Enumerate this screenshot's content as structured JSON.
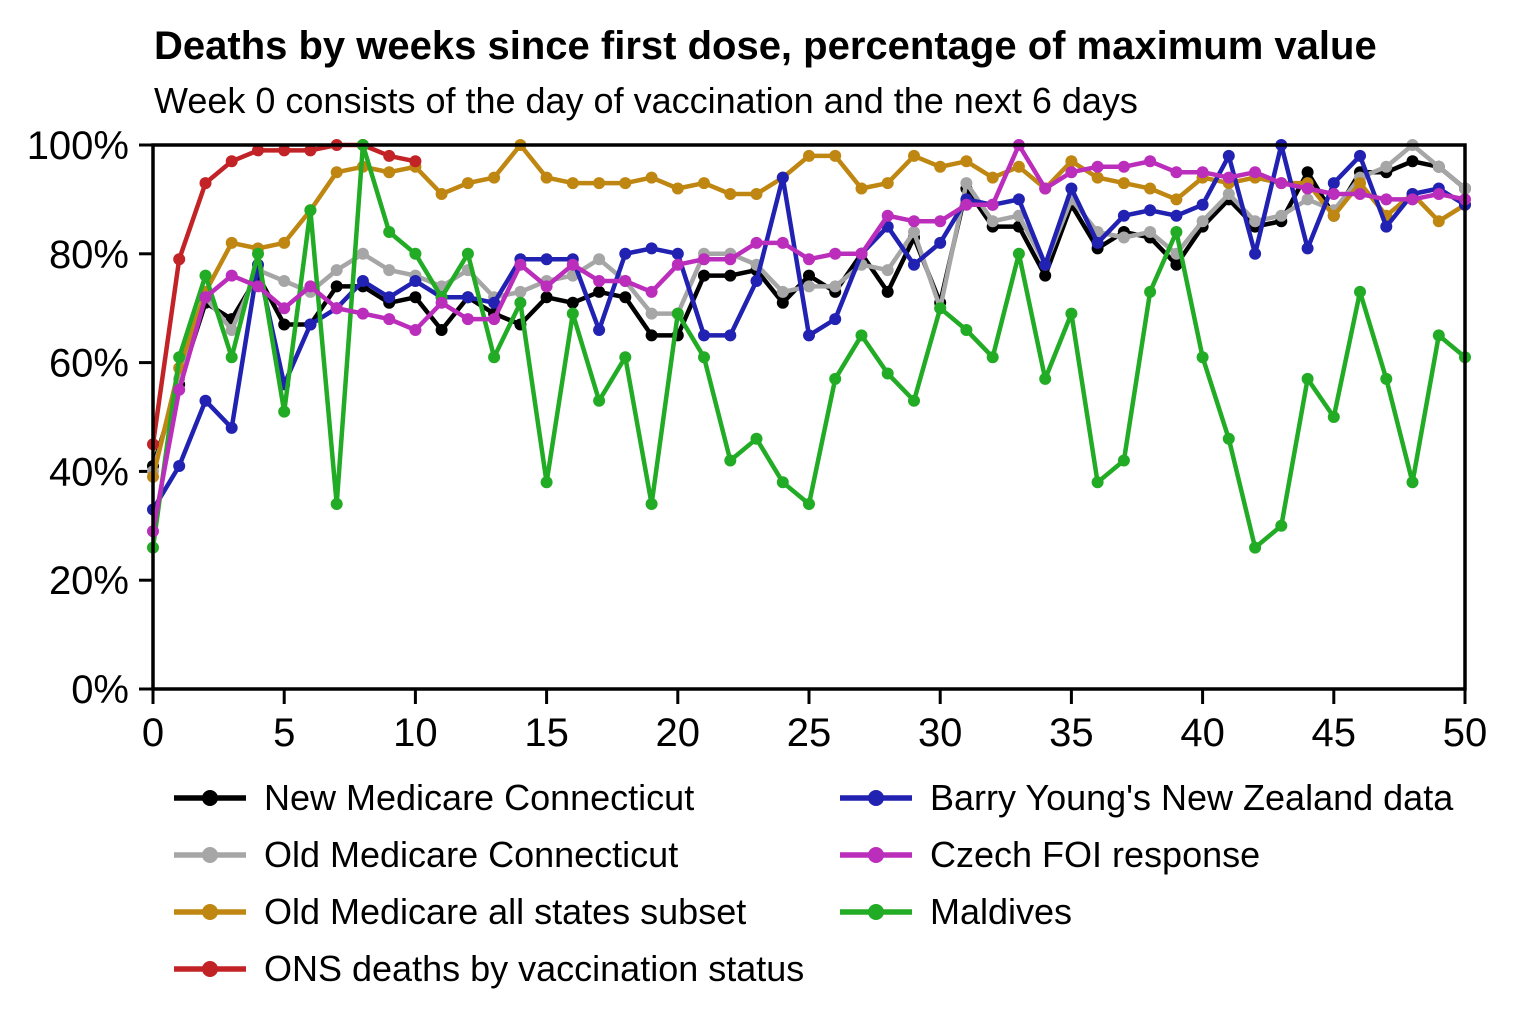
{
  "title": "Deaths by weeks since first dose, percentage of maximum value",
  "subtitle": "Week 0 consists of the day of vaccination and the next 6 days",
  "chart_data": {
    "type": "line",
    "title": "Deaths by weeks since first dose, percentage of maximum value",
    "subtitle": "Week 0 consists of the day of vaccination and the next 6 days",
    "xlabel": "",
    "ylabel": "",
    "xlim": [
      0,
      50
    ],
    "ylim": [
      0,
      100
    ],
    "grid": false,
    "legend_position": "bottom, two columns",
    "x_ticks": [
      0,
      5,
      10,
      15,
      20,
      25,
      30,
      35,
      40,
      45,
      50
    ],
    "y_tick_values": [
      0,
      20,
      40,
      60,
      80,
      100
    ],
    "y_tick_labels": [
      "0%",
      "20%",
      "40%",
      "60%",
      "80%",
      "100%"
    ],
    "weeks": [
      0,
      1,
      2,
      3,
      4,
      5,
      6,
      7,
      8,
      9,
      10,
      11,
      12,
      13,
      14,
      15,
      16,
      17,
      18,
      19,
      20,
      21,
      22,
      23,
      24,
      25,
      26,
      27,
      28,
      29,
      30,
      31,
      32,
      33,
      34,
      35,
      36,
      37,
      38,
      39,
      40,
      41,
      42,
      43,
      44,
      45,
      46,
      47,
      48,
      49,
      50
    ],
    "series": [
      {
        "name": "New Medicare Connecticut",
        "color": "#000000",
        "values": [
          41,
          56,
          71,
          68,
          76,
          67,
          67,
          74,
          74,
          71,
          72,
          66,
          72,
          69,
          67,
          72,
          71,
          73,
          72,
          65,
          65,
          76,
          76,
          77,
          71,
          76,
          73,
          80,
          73,
          83,
          71,
          92,
          85,
          85,
          76,
          89,
          81,
          84,
          83,
          78,
          85,
          90,
          85,
          86,
          95,
          87,
          95,
          95,
          97,
          96,
          92
        ]
      },
      {
        "name": "Old Medicare Connecticut",
        "color": "#a6a6a6",
        "values": [
          40,
          57,
          72,
          66,
          77,
          75,
          73,
          77,
          80,
          77,
          76,
          74,
          77,
          72,
          73,
          75,
          76,
          79,
          75,
          69,
          69,
          80,
          80,
          78,
          73,
          74,
          74,
          78,
          77,
          84,
          70,
          93,
          86,
          87,
          78,
          90,
          84,
          83,
          84,
          80,
          86,
          91,
          86,
          87,
          90,
          88,
          94,
          96,
          100,
          96,
          92
        ]
      },
      {
        "name": "Old Medicare all states subset",
        "color": "#bf8712",
        "values": [
          39,
          59,
          73,
          82,
          81,
          82,
          88,
          95,
          96,
          95,
          96,
          91,
          93,
          94,
          100,
          94,
          93,
          93,
          93,
          94,
          92,
          93,
          91,
          91,
          94,
          98,
          98,
          92,
          93,
          98,
          96,
          97,
          94,
          96,
          92,
          97,
          94,
          93,
          92,
          90,
          94,
          93,
          94,
          93,
          93,
          87,
          93,
          87,
          91,
          86,
          89
        ]
      },
      {
        "name": "ONS deaths by vaccination status",
        "color": "#c22326",
        "values": [
          45,
          79,
          93,
          97,
          99,
          99,
          99,
          100,
          100,
          98,
          97
        ]
      },
      {
        "name": "Barry Young's New Zealand data",
        "color": "#2121b2",
        "values": [
          33,
          41,
          53,
          48,
          78,
          56,
          67,
          70,
          75,
          72,
          75,
          72,
          72,
          71,
          79,
          79,
          79,
          66,
          80,
          81,
          80,
          65,
          65,
          75,
          94,
          65,
          68,
          80,
          85,
          78,
          82,
          90,
          89,
          90,
          78,
          92,
          82,
          87,
          88,
          87,
          89,
          98,
          80,
          100,
          81,
          93,
          98,
          85,
          91,
          92,
          89
        ]
      },
      {
        "name": "Czech FOI response",
        "color": "#bb2dbb",
        "values": [
          29,
          55,
          72,
          76,
          74,
          70,
          74,
          70,
          69,
          68,
          66,
          71,
          68,
          68,
          78,
          74,
          78,
          75,
          75,
          73,
          78,
          79,
          79,
          82,
          82,
          79,
          80,
          80,
          87,
          86,
          86,
          89,
          89,
          100,
          92,
          95,
          96,
          96,
          97,
          95,
          95,
          94,
          95,
          93,
          92,
          91,
          91,
          90,
          90,
          91,
          90
        ]
      },
      {
        "name": "Maldives",
        "color": "#22ab24",
        "values": [
          26,
          61,
          76,
          61,
          80,
          51,
          88,
          34,
          100,
          84,
          80,
          72,
          80,
          61,
          71,
          38,
          69,
          53,
          61,
          34,
          69,
          61,
          42,
          46,
          38,
          34,
          57,
          65,
          58,
          53,
          70,
          66,
          61,
          80,
          57,
          69,
          38,
          42,
          73,
          84,
          61,
          46,
          26,
          30,
          57,
          50,
          73,
          57,
          38,
          65,
          61
        ]
      }
    ]
  },
  "legend": {
    "columns": [
      {
        "items": [
          {
            "label": "New Medicare Connecticut",
            "color": "#000000"
          },
          {
            "label": "Old Medicare Connecticut",
            "color": "#a6a6a6"
          },
          {
            "label": "Old Medicare all states subset",
            "color": "#bf8712"
          },
          {
            "label": "ONS deaths by vaccination status",
            "color": "#c22326"
          }
        ]
      },
      {
        "items": [
          {
            "label": "Barry Young's New Zealand data",
            "color": "#2121b2"
          },
          {
            "label": "Czech FOI response",
            "color": "#bb2dbb"
          },
          {
            "label": "Maldives",
            "color": "#22ab24"
          }
        ]
      }
    ]
  }
}
